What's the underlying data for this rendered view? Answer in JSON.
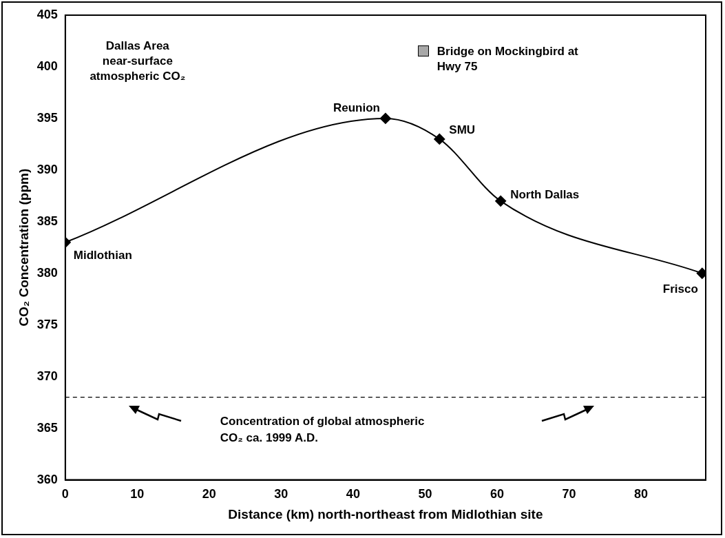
{
  "chart_data": {
    "type": "line",
    "title": "Dallas Area near-surface atmospheric CO₂",
    "xlabel": "Distance (km) north-northeast from Midlothian site",
    "ylabel": "CO₂ Concentration (ppm)",
    "x": [
      0,
      44.5,
      52,
      60.5,
      88.5
    ],
    "series": [
      {
        "color": "#000000",
        "values": [
          383,
          395,
          393,
          387,
          380
        ]
      }
    ],
    "marker": "diamond",
    "line_style": "solid",
    "grid": false,
    "legend": false,
    "xlim": [
      0,
      89
    ],
    "xticks": [
      0,
      10,
      20,
      30,
      40,
      50,
      60,
      70,
      80
    ],
    "ylim": [
      360,
      405
    ],
    "yticks": [
      360,
      365,
      370,
      375,
      380,
      385,
      390,
      395,
      400,
      405
    ],
    "ref_lines": [
      {
        "axis": "y",
        "value": 368,
        "label": "Concentration of global atmospheric CO₂ ca. 1999 A.D.",
        "color": "#000000",
        "line_style": "dashed"
      }
    ],
    "annotations": [
      {
        "text": "Midlothian",
        "x": 0,
        "y": 383
      },
      {
        "text": "Reunion",
        "x": 44.5,
        "y": 395
      },
      {
        "text": "SMU",
        "x": 52,
        "y": 393
      },
      {
        "text": "North Dallas",
        "x": 60.5,
        "y": 387
      },
      {
        "text": "Frisco",
        "x": 88.5,
        "y": 380
      },
      "Bridge on Mockingbird at Hwy 75"
    ]
  }
}
